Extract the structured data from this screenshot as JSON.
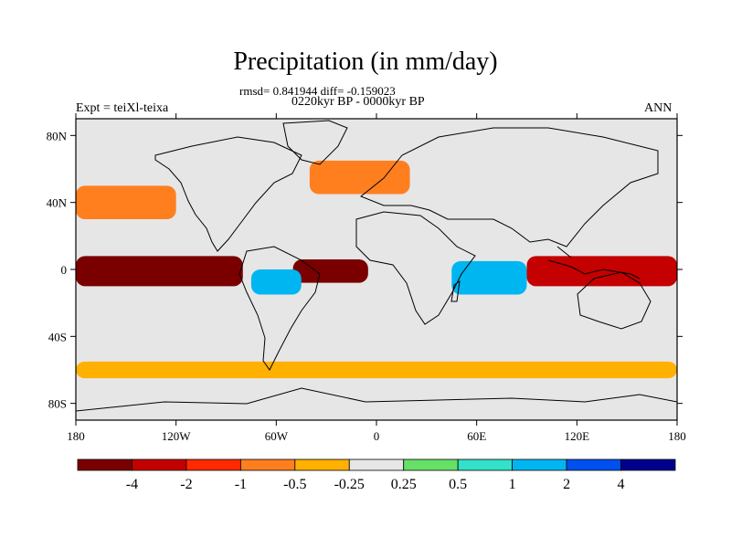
{
  "title": "Precipitation (in mm/day)",
  "stats_line": "rmsd= 0.841944 diff= -0.159023",
  "period_line": "0220kyr BP - 0000kyr BP",
  "experiment_label": "Expt = teiXl-teixa",
  "season_label": "ANN",
  "map": {
    "projection": "cylindrical-equidistant",
    "lon_range": [
      -180,
      180
    ],
    "lat_range": [
      -90,
      90
    ],
    "y_ticks": [
      {
        "value": 80,
        "label": "80N"
      },
      {
        "value": 40,
        "label": "40N"
      },
      {
        "value": 0,
        "label": "0"
      },
      {
        "value": -40,
        "label": "40S"
      },
      {
        "value": -80,
        "label": "80S"
      }
    ],
    "x_ticks": [
      {
        "value": -180,
        "label": "180"
      },
      {
        "value": -120,
        "label": "120W"
      },
      {
        "value": -60,
        "label": "60W"
      },
      {
        "value": 0,
        "label": "0"
      },
      {
        "value": 60,
        "label": "60E"
      },
      {
        "value": 120,
        "label": "120E"
      },
      {
        "value": 180,
        "label": "180"
      }
    ],
    "background_color": "#e6e6e6",
    "coastline_color": "#000000"
  },
  "colorbar": {
    "colors": [
      "#7a0000",
      "#c40000",
      "#ff2a00",
      "#ff7f1f",
      "#ffb000",
      "#e6e6e6",
      "#66e066",
      "#33e0c8",
      "#00b6f0",
      "#0050f0",
      "#00008c"
    ],
    "labels": [
      "-4",
      "-2",
      "-1",
      "-0.5",
      "-0.25",
      "0.25",
      "0.5",
      "1",
      "2",
      "4"
    ]
  },
  "anomaly_regions": [
    {
      "name": "tropical-pacific-east-dry",
      "lon": [
        -180,
        -80
      ],
      "lat": [
        -10,
        8
      ],
      "category": 0
    },
    {
      "name": "tropical-pacific-west-dry",
      "lon": [
        90,
        180
      ],
      "lat": [
        -10,
        8
      ],
      "category": 1
    },
    {
      "name": "atlantic-dry",
      "lon": [
        -50,
        -5
      ],
      "lat": [
        -8,
        6
      ],
      "category": 0
    },
    {
      "name": "amazon-wet",
      "lon": [
        -75,
        -45
      ],
      "lat": [
        -15,
        0
      ],
      "category": 8
    },
    {
      "name": "indian-ocean-wet",
      "lon": [
        45,
        90
      ],
      "lat": [
        -15,
        5
      ],
      "category": 8
    },
    {
      "name": "north-pacific-dry",
      "lon": [
        -180,
        -120
      ],
      "lat": [
        30,
        50
      ],
      "category": 3
    },
    {
      "name": "north-atlantic-dry",
      "lon": [
        -40,
        20
      ],
      "lat": [
        45,
        65
      ],
      "category": 3
    },
    {
      "name": "southern-ocean-dry",
      "lon": [
        -180,
        180
      ],
      "lat": [
        -65,
        -55
      ],
      "category": 4
    }
  ]
}
